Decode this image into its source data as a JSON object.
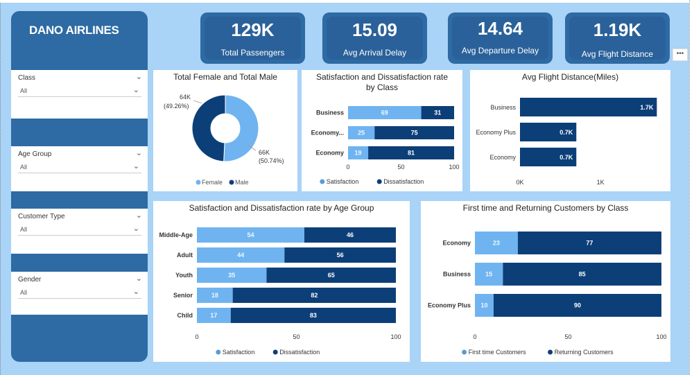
{
  "app": {
    "title": "DANO AIRLINES"
  },
  "colors": {
    "light": "#6fb4f0",
    "dark": "#0c3f78",
    "mid": "#5b9bd5",
    "sidebar": "#2e6aa3",
    "canvas": "#a9d3f7"
  },
  "slicers": [
    {
      "title": "Class",
      "value": "All"
    },
    {
      "title": "Age Group",
      "value": "All"
    },
    {
      "title": "Customer Type",
      "value": "All"
    },
    {
      "title": "Gender",
      "value": "All"
    }
  ],
  "kpis": [
    {
      "value": "129K",
      "label": "Total Passengers"
    },
    {
      "value": "15.09",
      "label": "Avg Arrival Delay"
    },
    {
      "value": "14.64",
      "label": "Avg Departure Delay"
    },
    {
      "value": "1.19K",
      "label": "Avg Flight Distance"
    }
  ],
  "more_options_icon": "ellipsis-icon",
  "more_options_label": "•••",
  "chart_data": [
    {
      "id": "gender",
      "type": "pie",
      "title": "Total Female and Total Male",
      "slices": [
        {
          "name": "Female",
          "value": 66,
          "label": "66K",
          "pct": "(50.74%)"
        },
        {
          "name": "Male",
          "value": 64,
          "label": "64K",
          "pct": "(49.26%)"
        }
      ],
      "legend": [
        "Female",
        "Male"
      ],
      "legend_position": "bottom"
    },
    {
      "id": "class_sat",
      "type": "bar",
      "orientation": "horizontal-stacked",
      "title": "Satisfaction and Dissatisfaction rate by Class",
      "title_lines": [
        "Satisfaction and Dissatisfaction rate",
        "by Class"
      ],
      "categories": [
        "Business",
        "Economy...",
        "Economy"
      ],
      "series": [
        {
          "name": "Satisfaction",
          "values": [
            69,
            25,
            19
          ]
        },
        {
          "name": "Dissatisfaction",
          "values": [
            31,
            75,
            81
          ]
        }
      ],
      "xlim": [
        0,
        100
      ],
      "xticks": [
        "0",
        "50",
        "100"
      ],
      "legend_position": "bottom"
    },
    {
      "id": "distance",
      "type": "bar",
      "orientation": "horizontal",
      "title": "Avg Flight Distance(Miles)",
      "categories": [
        "Business",
        "Economy Plus",
        "Economy"
      ],
      "values": [
        1.7,
        0.7,
        0.7
      ],
      "value_labels": [
        "1.7K",
        "0.7K",
        "0.7K"
      ],
      "xlim": [
        0,
        1.8
      ],
      "xticks": [
        "0K",
        "1K"
      ],
      "xtick_values": [
        0,
        1
      ]
    },
    {
      "id": "age_sat",
      "type": "bar",
      "orientation": "horizontal-stacked",
      "title": "Satisfaction and Dissatisfaction rate by Age Group",
      "categories": [
        "Middle-Age",
        "Adult",
        "Youth",
        "Senior",
        "Child"
      ],
      "series": [
        {
          "name": "Satisfaction",
          "values": [
            54,
            44,
            35,
            18,
            17
          ]
        },
        {
          "name": "Dissatisfaction",
          "values": [
            46,
            56,
            65,
            82,
            83
          ]
        }
      ],
      "xlim": [
        0,
        100
      ],
      "xticks": [
        "0",
        "50",
        "100"
      ],
      "legend_position": "bottom"
    },
    {
      "id": "customer_type",
      "type": "bar",
      "orientation": "horizontal-stacked",
      "title": "First time and Returning Customers by Class",
      "categories": [
        "Economy",
        "Business",
        "Economy Plus"
      ],
      "series": [
        {
          "name": "First time Customers",
          "values": [
            23,
            15,
            10
          ]
        },
        {
          "name": "Returning Customers",
          "values": [
            77,
            85,
            90
          ]
        }
      ],
      "xlim": [
        0,
        100
      ],
      "xticks": [
        "0",
        "50",
        "100"
      ],
      "legend_position": "bottom"
    }
  ]
}
